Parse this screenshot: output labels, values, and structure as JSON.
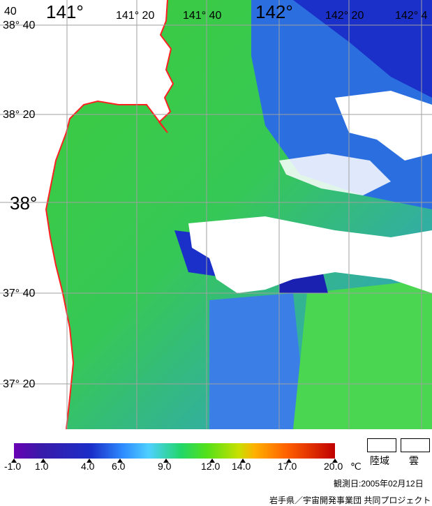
{
  "map": {
    "lon_labels": [
      "141°",
      "141° 20",
      "141° 40",
      "142°",
      "142° 20",
      "142° 4"
    ],
    "lat_labels": [
      "40",
      "38° 40",
      "38° 20",
      "38°",
      "37° 40",
      "37° 20"
    ]
  },
  "legend": {
    "ticks": [
      "-1.0",
      "1.0",
      "4.0",
      "6.0",
      "9.0",
      "12.0",
      "14.0",
      "17.0",
      "20.0"
    ],
    "unit": "℃",
    "land_label": "陸域",
    "cloud_label": "雲",
    "colors": {
      "land": "#ffffff",
      "cloud": "#ffffff",
      "coastline": "#ff2020",
      "grid": "#a0a0a0"
    }
  },
  "footer": {
    "observed_date": "観測日:2005年02月12日",
    "credit": "岩手県／宇宙開発事業団 共同プロジェクト"
  }
}
